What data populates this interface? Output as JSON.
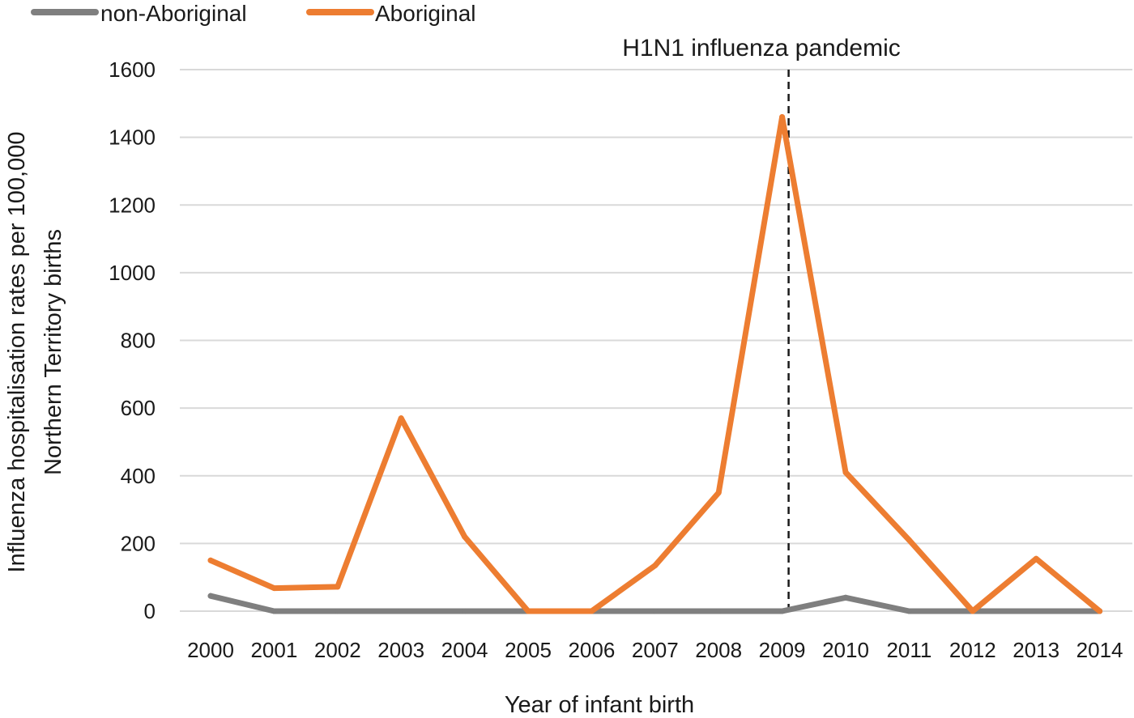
{
  "chart_data": {
    "type": "line",
    "x": [
      2000,
      2001,
      2002,
      2003,
      2004,
      2005,
      2006,
      2007,
      2008,
      2009,
      2010,
      2011,
      2012,
      2013,
      2014
    ],
    "x_tick_labels": [
      "2000",
      "2001",
      "2002",
      "2003",
      "2004",
      "2005",
      "2006",
      "2007",
      "2008",
      "2009",
      "2010",
      "2011",
      "2012",
      "2013",
      "2014"
    ],
    "y_ticks": [
      0,
      200,
      400,
      600,
      800,
      1000,
      1200,
      1400,
      1600
    ],
    "y_tick_labels": [
      "0",
      "200",
      "400",
      "600",
      "800",
      "1000",
      "1200",
      "1400",
      "1600"
    ],
    "ylim": [
      0,
      1600
    ],
    "xlabel": "Year of infant birth",
    "ylabel_line1": "Influenza hospitalisation rates per 100,000",
    "ylabel_line2": "Northern Territory births",
    "grid": "horizontal",
    "legend_position": "top-left",
    "series": [
      {
        "name": "non-Aboriginal",
        "color": "#7f7f7f",
        "values": [
          45,
          0,
          0,
          0,
          0,
          0,
          0,
          0,
          0,
          0,
          40,
          0,
          0,
          0,
          0
        ]
      },
      {
        "name": "Aboriginal",
        "color": "#ed7d31",
        "values": [
          150,
          68,
          72,
          570,
          220,
          0,
          0,
          135,
          350,
          1460,
          410,
          210,
          0,
          155,
          0
        ]
      }
    ],
    "annotation": {
      "text": "H1N1 influenza pandemic",
      "x": 2009
    }
  }
}
